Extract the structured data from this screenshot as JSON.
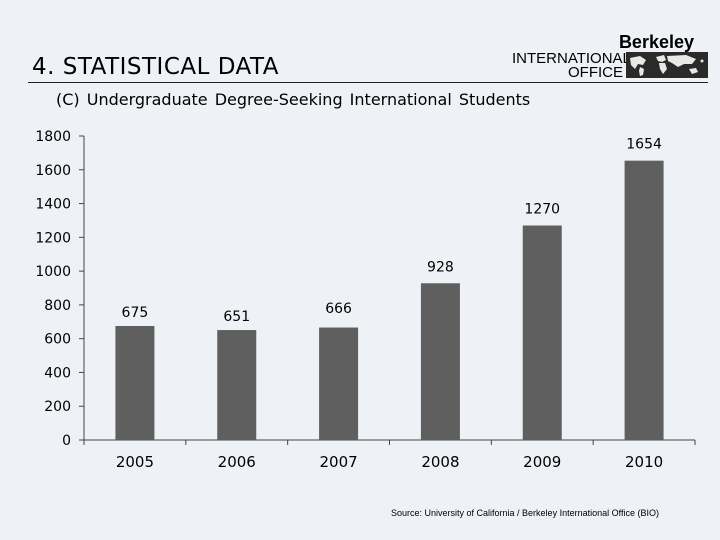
{
  "slide": {
    "title": "4. STATISTICAL DATA",
    "subtitle": "(C) Undergraduate  Degree-Seeking International Students",
    "source": "Source:  University of California / Berkeley International Office (BIO)"
  },
  "logo": {
    "name": "Berkeley",
    "line1": "INTERNATIONAL",
    "line2": "OFFICE",
    "icon": "world-map-icon"
  },
  "colors": {
    "background": "#eef2f6",
    "bar": "#5f5f5f",
    "axis": "#444444"
  },
  "chart_data": {
    "type": "bar",
    "categories": [
      "2005",
      "2006",
      "2007",
      "2008",
      "2009",
      "2010"
    ],
    "values": [
      675,
      651,
      666,
      928,
      1270,
      1654
    ],
    "data_labels": [
      "675",
      "651",
      "666",
      "928",
      "1270",
      "1654"
    ],
    "yticks": [
      "0",
      "200",
      "400",
      "600",
      "800",
      "1000",
      "1200",
      "1400",
      "1600",
      "1800"
    ],
    "ylim": [
      0,
      1800
    ],
    "title": "",
    "xlabel": "",
    "ylabel": "",
    "grid": false,
    "legend": "none"
  }
}
